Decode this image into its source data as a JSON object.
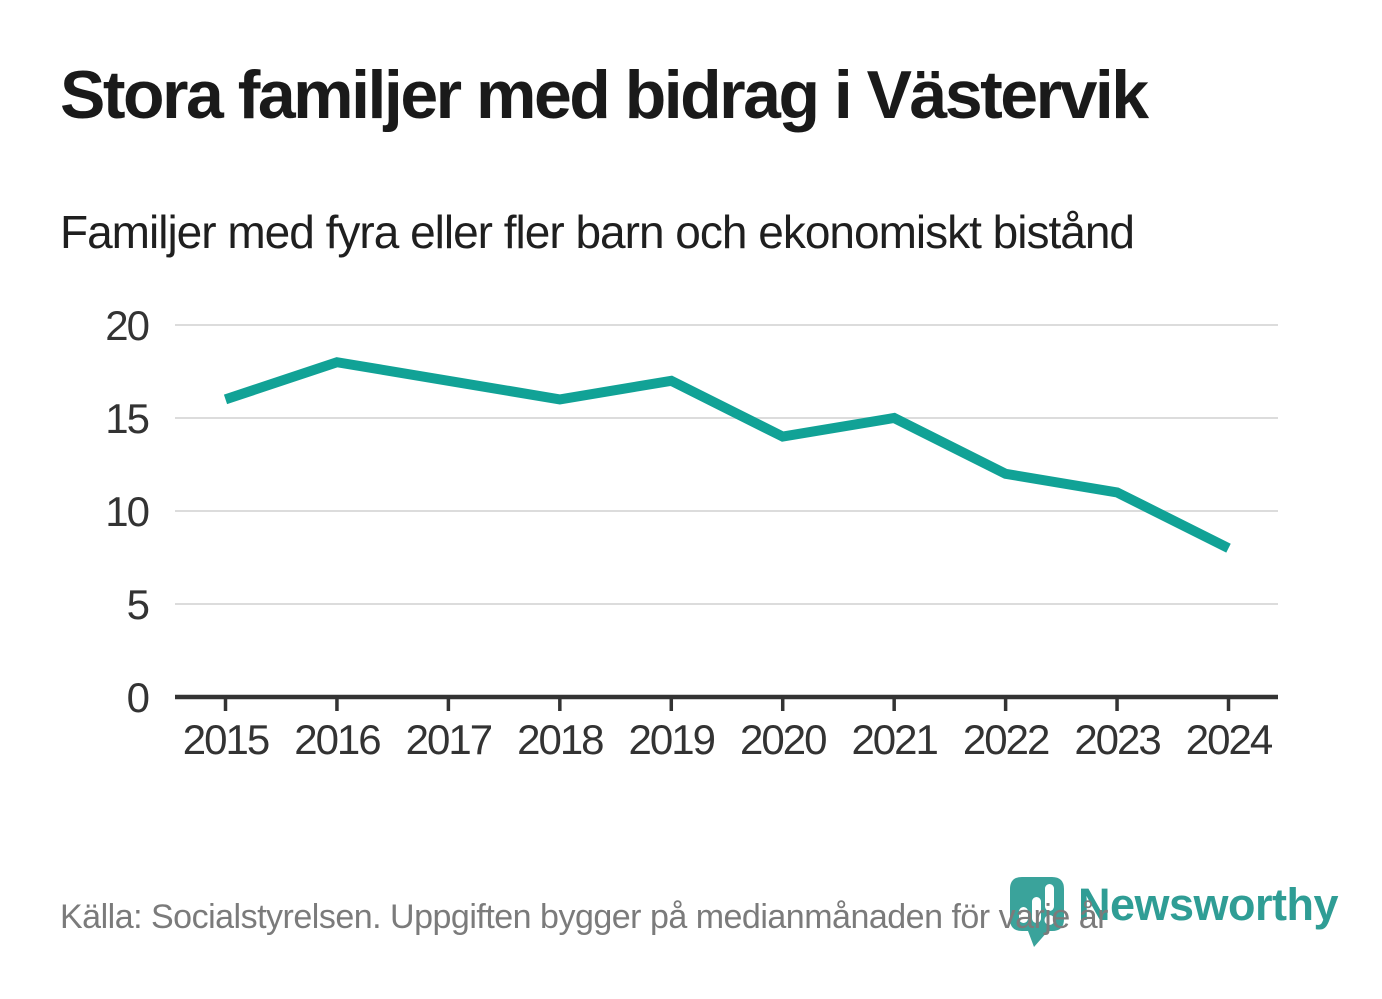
{
  "header": {
    "title": "Stora familjer med bidrag i Västervik",
    "subtitle": "Familjer med fyra eller fler barn och ekonomiskt bistånd"
  },
  "chart_data": {
    "type": "line",
    "title": "Stora familjer med bidrag i Västervik",
    "subtitle": "Familjer med fyra eller fler barn och ekonomiskt bistånd",
    "x": [
      2015,
      2016,
      2017,
      2018,
      2019,
      2020,
      2021,
      2022,
      2023,
      2024
    ],
    "series": [
      {
        "name": "Familjer med fyra eller fler barn och ekonomiskt bistånd",
        "values": [
          16,
          18,
          17,
          16,
          17,
          14,
          15,
          12,
          11,
          8
        ]
      }
    ],
    "xlabel": "",
    "ylabel": "",
    "ylim": [
      0,
      20
    ],
    "yticks": [
      0,
      5,
      10,
      15,
      20
    ],
    "grid": true,
    "legend": "none",
    "line_color": "#11a296"
  },
  "footer": {
    "source": "Källa: Socialstyrelsen. Uppgiften bygger på medianmånaden för varje år",
    "brand": "Newsworthy"
  },
  "colors": {
    "accent": "#11a296",
    "grid": "#dcdcdc",
    "axis": "#333333",
    "title": "#1a1a1a",
    "muted": "#7b7b7b",
    "brand": "#2f9d95",
    "brand_badge": "#3aa39b"
  },
  "icons": {
    "brand_badge": "newsworthy-badge-icon (speech-bubble pin with white bar-chart / exclamation)"
  }
}
